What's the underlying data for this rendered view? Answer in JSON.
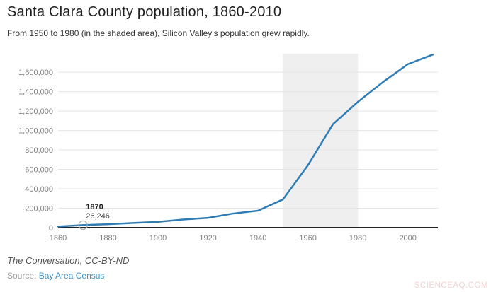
{
  "header": {
    "title": "Santa Clara County population, 1860-2010",
    "subtitle": "From 1950 to 1980 (in the shaded area), Silicon Valley's population grew rapidly."
  },
  "chart_data": {
    "type": "line",
    "title": "Santa Clara County population, 1860-2010",
    "subtitle": "From 1950 to 1980 (in the shaded area), Silicon Valley's population grew rapidly.",
    "x": [
      1860,
      1870,
      1880,
      1890,
      1900,
      1910,
      1920,
      1930,
      1940,
      1950,
      1960,
      1970,
      1980,
      1990,
      2000,
      2010
    ],
    "values": [
      11912,
      26246,
      35039,
      48005,
      60216,
      83539,
      100676,
      145118,
      174949,
      290547,
      642315,
      1064714,
      1295071,
      1497577,
      1682585,
      1781642
    ],
    "series_name": "Population",
    "xlabel": "",
    "ylabel": "",
    "xlim": [
      1860,
      2012
    ],
    "ylim": [
      0,
      1790000
    ],
    "x_ticks": [
      1860,
      1880,
      1900,
      1920,
      1940,
      1960,
      1980,
      2000
    ],
    "y_ticks": [
      0,
      200000,
      400000,
      600000,
      800000,
      1000000,
      1200000,
      1400000,
      1600000
    ],
    "grid": true,
    "legend": "none",
    "line_color": "#2e7cb5",
    "gridline_color": "#e4e4e4",
    "axis_line_color": "#222222",
    "tick_label_color": "#808080",
    "shaded_region": {
      "from": 1950,
      "to": 1980,
      "color": "#efefef"
    },
    "annotation": {
      "x": 1870,
      "value": 26246,
      "label": "1870",
      "value_label": "26,246",
      "marker": "open-circle",
      "marker_color": "#aaaaaa"
    }
  },
  "footer": {
    "attribution": "The Conversation, CC-BY-ND",
    "source_prefix": "Source: ",
    "source_link": "Bay Area Census",
    "link_color": "#4292c6"
  },
  "watermark": "SCIENCEAQ.COM"
}
